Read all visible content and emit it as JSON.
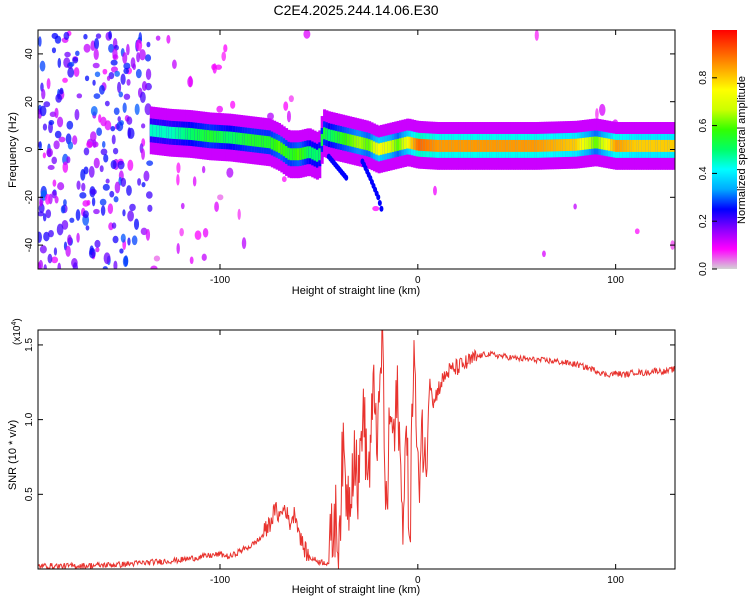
{
  "title": "C2E4.2025.244.14.06.E30",
  "colors": {
    "snr_line": "#e8332e",
    "axis": "#000000",
    "background": "#ffffff",
    "colorbar": [
      "#d3d3d3",
      "#ff00ff",
      "#8800ff",
      "#0000ff",
      "#00aaff",
      "#00ffff",
      "#00ff66",
      "#33ff00",
      "#ccff00",
      "#ffff00",
      "#ffaa00",
      "#ff5500",
      "#ff0000"
    ]
  },
  "chart_data": [
    {
      "type": "heatmap",
      "title": "C2E4.2025.244.14.06.E30",
      "xlabel": "Height of straight line (km)",
      "ylabel": "Frequency (Hz)",
      "xlim": [
        -192,
        130
      ],
      "ylim": [
        -50,
        50
      ],
      "xticks": [
        -100,
        0,
        100
      ],
      "xtick_labels": [
        "-100",
        "0",
        "100"
      ],
      "yticks": [
        -40,
        -20,
        0,
        20,
        40
      ],
      "ytick_labels": [
        "-40",
        "-20",
        "0",
        "20",
        "40"
      ],
      "colorbar": {
        "label": "Normalized spectral amplitude",
        "range": [
          0,
          1
        ],
        "ticks": [
          0.0,
          0.2,
          0.4,
          0.6,
          0.8
        ],
        "tick_labels": [
          "0.0",
          "0.2",
          "0.4",
          "0.6",
          "0.8"
        ]
      },
      "ridge": {
        "x": [
          -135,
          -125,
          -115,
          -105,
          -95,
          -85,
          -75,
          -70,
          -65,
          -60,
          -55,
          -50,
          -48,
          -45,
          -40,
          -35,
          -30,
          -25,
          -20,
          -15,
          -10,
          -5,
          0,
          10,
          20,
          40,
          60,
          80,
          90,
          100,
          110,
          130
        ],
        "y": [
          8,
          7,
          6.5,
          5.5,
          5,
          4,
          3,
          1,
          -2,
          -2,
          -1,
          -3,
          7,
          6,
          5,
          4,
          3,
          2,
          0,
          1,
          2,
          3,
          2,
          1.5,
          1.5,
          1.5,
          1.5,
          2,
          3,
          1.5,
          1.5,
          1.5
        ],
        "amplitude": [
          0.45,
          0.45,
          0.5,
          0.55,
          0.5,
          0.55,
          0.55,
          0.6,
          0.55,
          0.6,
          0.5,
          0.5,
          0.55,
          0.5,
          0.55,
          0.6,
          0.65,
          0.6,
          0.75,
          0.7,
          0.6,
          0.75,
          0.9,
          0.85,
          0.85,
          0.85,
          0.85,
          0.8,
          0.6,
          0.85,
          0.8,
          0.8
        ]
      },
      "branches": [
        {
          "x": [
            -45,
            -40,
            -36
          ],
          "y": [
            -3,
            -8,
            -12
          ],
          "amplitude": 0.25
        },
        {
          "x": [
            -28,
            -24,
            -20,
            -18
          ],
          "y": [
            -5,
            -12,
            -20,
            -26
          ],
          "amplitude": 0.25
        }
      ]
    },
    {
      "type": "line",
      "xlabel": "Height of straight line (km)",
      "ylabel": "SNR (10 * v/v)",
      "y_scale_label": "(x10",
      "y_scale_exponent": "4",
      "y_scale_suffix": ")",
      "xlim": [
        -192,
        130
      ],
      "ylim": [
        0,
        1.6
      ],
      "xticks": [
        -100,
        0,
        100
      ],
      "xtick_labels": [
        "-100",
        "0",
        "100"
      ],
      "yticks": [
        0.5,
        1.0,
        1.5
      ],
      "ytick_labels": [
        "0.5",
        "1.0",
        "1.5"
      ],
      "series": [
        {
          "name": "SNR",
          "x": [
            -192,
            -175,
            -160,
            -150,
            -140,
            -130,
            -120,
            -110,
            -100,
            -95,
            -90,
            -85,
            -80,
            -75,
            -72,
            -70,
            -67,
            -65,
            -62,
            -60,
            -58,
            -55,
            -50,
            -45,
            -42,
            -40,
            -38,
            -35,
            -32,
            -30,
            -28,
            -25,
            -22,
            -20,
            -18,
            -16,
            -14,
            -12,
            -10,
            -8,
            -6,
            -4,
            -2,
            0,
            2,
            4,
            6,
            8,
            10,
            12,
            15,
            20,
            25,
            30,
            35,
            40,
            45,
            50,
            60,
            70,
            80,
            85,
            90,
            95,
            100,
            105,
            110,
            115,
            120,
            125,
            130
          ],
          "y": [
            0.02,
            0.02,
            0.025,
            0.03,
            0.04,
            0.05,
            0.06,
            0.08,
            0.1,
            0.08,
            0.12,
            0.15,
            0.2,
            0.3,
            0.4,
            0.35,
            0.42,
            0.3,
            0.38,
            0.25,
            0.15,
            0.08,
            0.05,
            0.04,
            0.35,
            0.2,
            0.75,
            0.45,
            0.85,
            0.5,
            1.1,
            0.6,
            1.2,
            0.85,
            1.6,
            0.3,
            1.05,
            0.85,
            1.2,
            0.3,
            0.9,
            0.25,
            1.55,
            0.5,
            1.0,
            0.6,
            1.3,
            1.1,
            1.2,
            1.25,
            1.32,
            1.35,
            1.38,
            1.42,
            1.44,
            1.43,
            1.42,
            1.41,
            1.4,
            1.39,
            1.37,
            1.35,
            1.33,
            1.3,
            1.31,
            1.3,
            1.32,
            1.31,
            1.33,
            1.32,
            1.34
          ]
        }
      ]
    }
  ]
}
